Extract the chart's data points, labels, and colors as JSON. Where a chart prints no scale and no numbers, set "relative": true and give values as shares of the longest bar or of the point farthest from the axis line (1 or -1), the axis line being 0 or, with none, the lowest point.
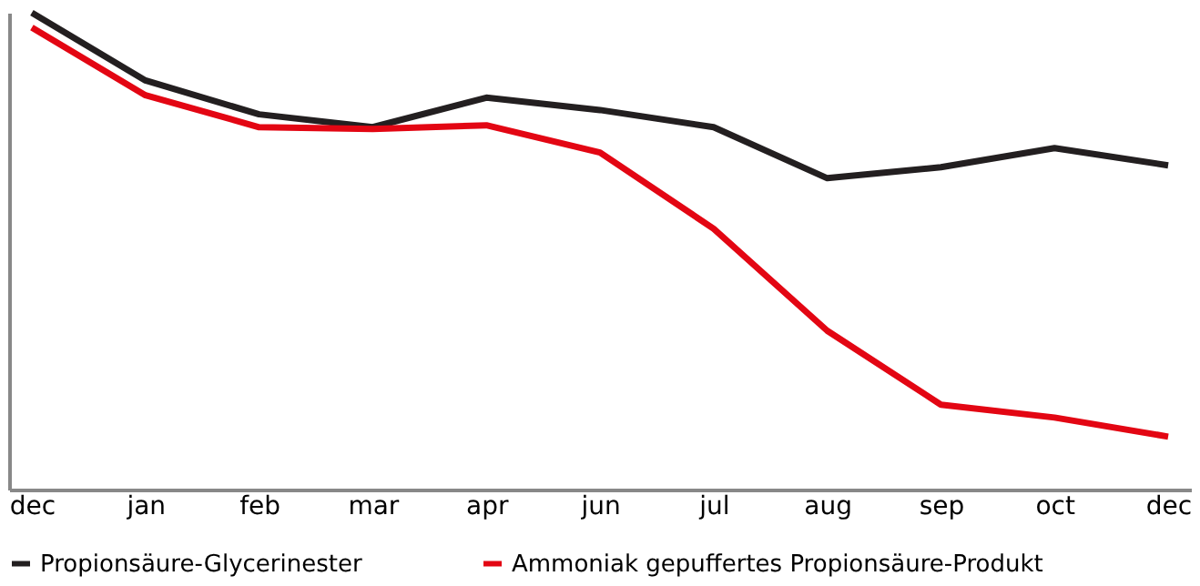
{
  "chart_data": {
    "type": "line",
    "relative": true,
    "categories": [
      "dec",
      "jan",
      "feb",
      "mar",
      "apr",
      "jun",
      "jul",
      "aug",
      "sep",
      "oct",
      "dec"
    ],
    "series": [
      {
        "name": "Propionsäure-Glycerinester",
        "color": "#231f20",
        "values": [
          1,
          0.858,
          0.787,
          0.76,
          0.822,
          0.796,
          0.76,
          0.653,
          0.676,
          0.716,
          0.68
        ]
      },
      {
        "name": "Ammoniak gepuffertes Propionsäure-Produkt",
        "color": "#e30613",
        "values": [
          0.969,
          0.827,
          0.76,
          0.756,
          0.764,
          0.707,
          0.547,
          0.333,
          0.178,
          0.151,
          0.111
        ]
      }
    ],
    "legend": "bottom",
    "grid": false,
    "marker": "none",
    "line_style": "solid"
  }
}
